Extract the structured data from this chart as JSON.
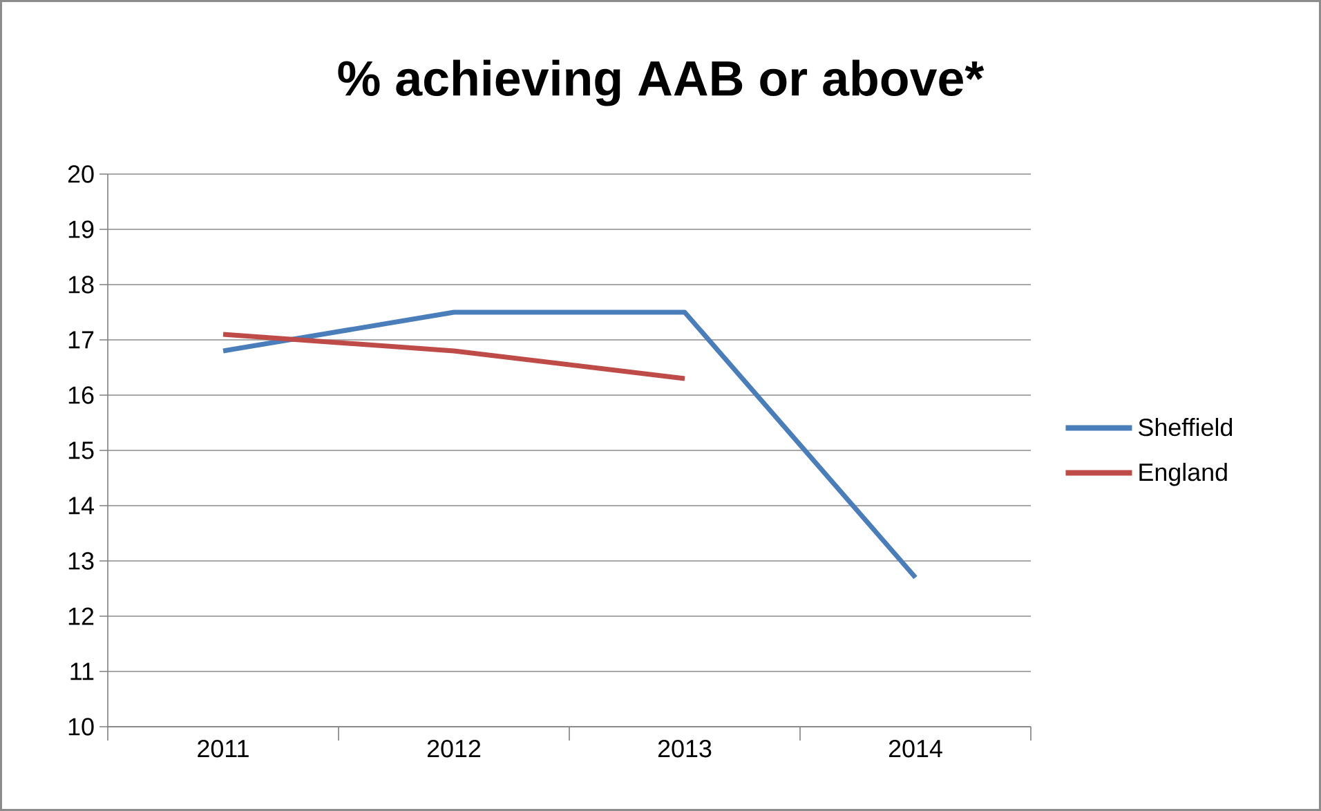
{
  "chart_data": {
    "type": "line",
    "title": "% achieving AAB or above*",
    "categories": [
      "2011",
      "2012",
      "2013",
      "2014"
    ],
    "series": [
      {
        "name": "Sheffield",
        "color": "#4a7ebb",
        "values": [
          16.8,
          17.5,
          17.5,
          12.7
        ]
      },
      {
        "name": "England",
        "color": "#be4b48",
        "values": [
          17.1,
          16.8,
          16.3,
          null
        ]
      }
    ],
    "ylim": [
      10,
      20
    ],
    "yticks": [
      10,
      11,
      12,
      13,
      14,
      15,
      16,
      17,
      18,
      19,
      20
    ],
    "grid": "y",
    "legend": "right",
    "marker": "none",
    "line_style": "solid"
  }
}
